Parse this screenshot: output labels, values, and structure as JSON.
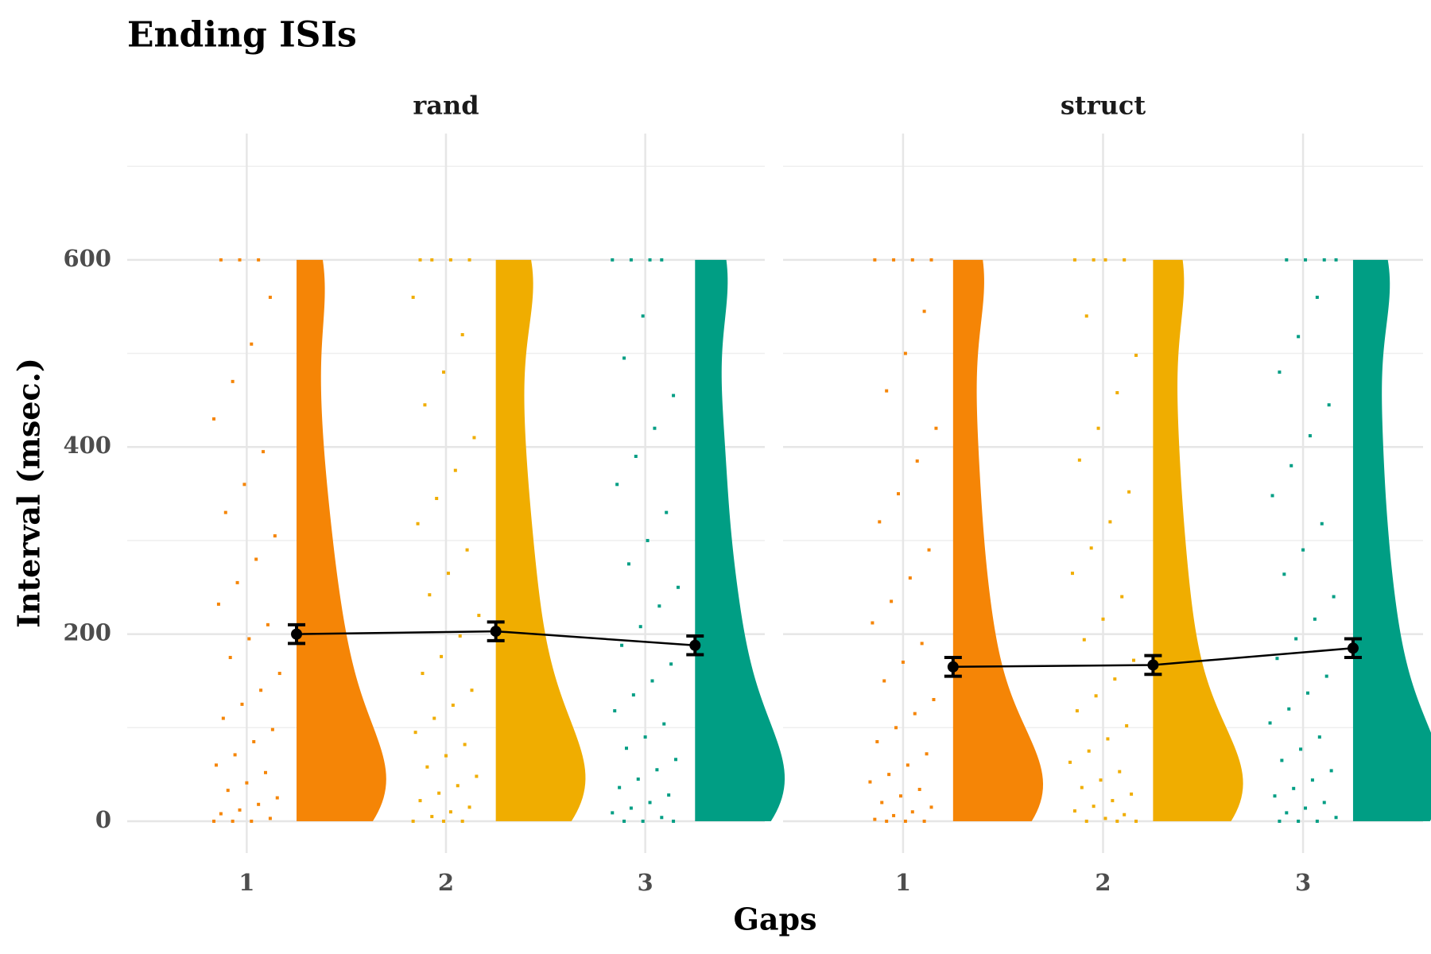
{
  "chart_data": {
    "type": "raincloud",
    "title": "Ending ISIs",
    "x_label": "Gaps",
    "y_label": "Interval (msec.)",
    "categories": [
      "1",
      "2",
      "3"
    ],
    "colors": [
      "#f58506",
      "#f0ad00",
      "#009e84"
    ],
    "ylim": [
      -34,
      735
    ],
    "yticks": [
      0,
      200,
      400,
      600
    ],
    "minor_yticks": [
      100,
      300,
      500,
      700
    ],
    "grid": true,
    "facets": [
      {
        "name": "rand",
        "means": [
          200,
          203,
          188
        ],
        "errors": [
          10,
          10,
          10
        ],
        "points": [
          [
            0,
            0,
            0,
            3,
            8,
            12,
            18,
            25,
            33,
            41,
            52,
            60,
            71,
            85,
            98,
            110,
            125,
            140,
            158,
            175,
            195,
            210,
            232,
            255,
            280,
            305,
            330,
            360,
            395,
            430,
            470,
            510,
            560,
            600,
            600,
            600
          ],
          [
            0,
            0,
            0,
            5,
            10,
            15,
            22,
            30,
            38,
            48,
            58,
            70,
            82,
            95,
            110,
            124,
            140,
            158,
            176,
            198,
            220,
            242,
            265,
            290,
            318,
            345,
            375,
            410,
            445,
            480,
            520,
            560,
            600,
            600,
            600,
            600
          ],
          [
            0,
            0,
            0,
            4,
            9,
            14,
            20,
            28,
            36,
            45,
            55,
            66,
            78,
            90,
            104,
            118,
            135,
            150,
            168,
            188,
            208,
            230,
            250,
            275,
            300,
            330,
            360,
            390,
            420,
            455,
            495,
            540,
            600,
            600,
            600,
            600
          ]
        ]
      },
      {
        "name": "struct",
        "means": [
          165,
          167,
          185
        ],
        "errors": [
          10,
          10,
          10
        ],
        "points": [
          [
            0,
            0,
            0,
            2,
            6,
            10,
            15,
            20,
            27,
            34,
            42,
            50,
            60,
            72,
            85,
            100,
            115,
            130,
            150,
            170,
            190,
            212,
            235,
            260,
            290,
            320,
            350,
            385,
            420,
            460,
            500,
            545,
            600,
            600,
            600,
            600
          ],
          [
            0,
            0,
            0,
            3,
            7,
            11,
            16,
            22,
            29,
            36,
            44,
            53,
            63,
            75,
            88,
            102,
            118,
            134,
            152,
            172,
            194,
            216,
            240,
            265,
            292,
            320,
            352,
            386,
            420,
            458,
            498,
            540,
            600,
            600,
            600,
            600
          ],
          [
            0,
            0,
            0,
            4,
            9,
            14,
            20,
            27,
            35,
            44,
            54,
            65,
            77,
            90,
            105,
            120,
            137,
            155,
            174,
            195,
            216,
            240,
            264,
            290,
            318,
            348,
            380,
            412,
            445,
            480,
            518,
            560,
            600,
            600,
            600,
            600
          ]
        ]
      }
    ]
  }
}
